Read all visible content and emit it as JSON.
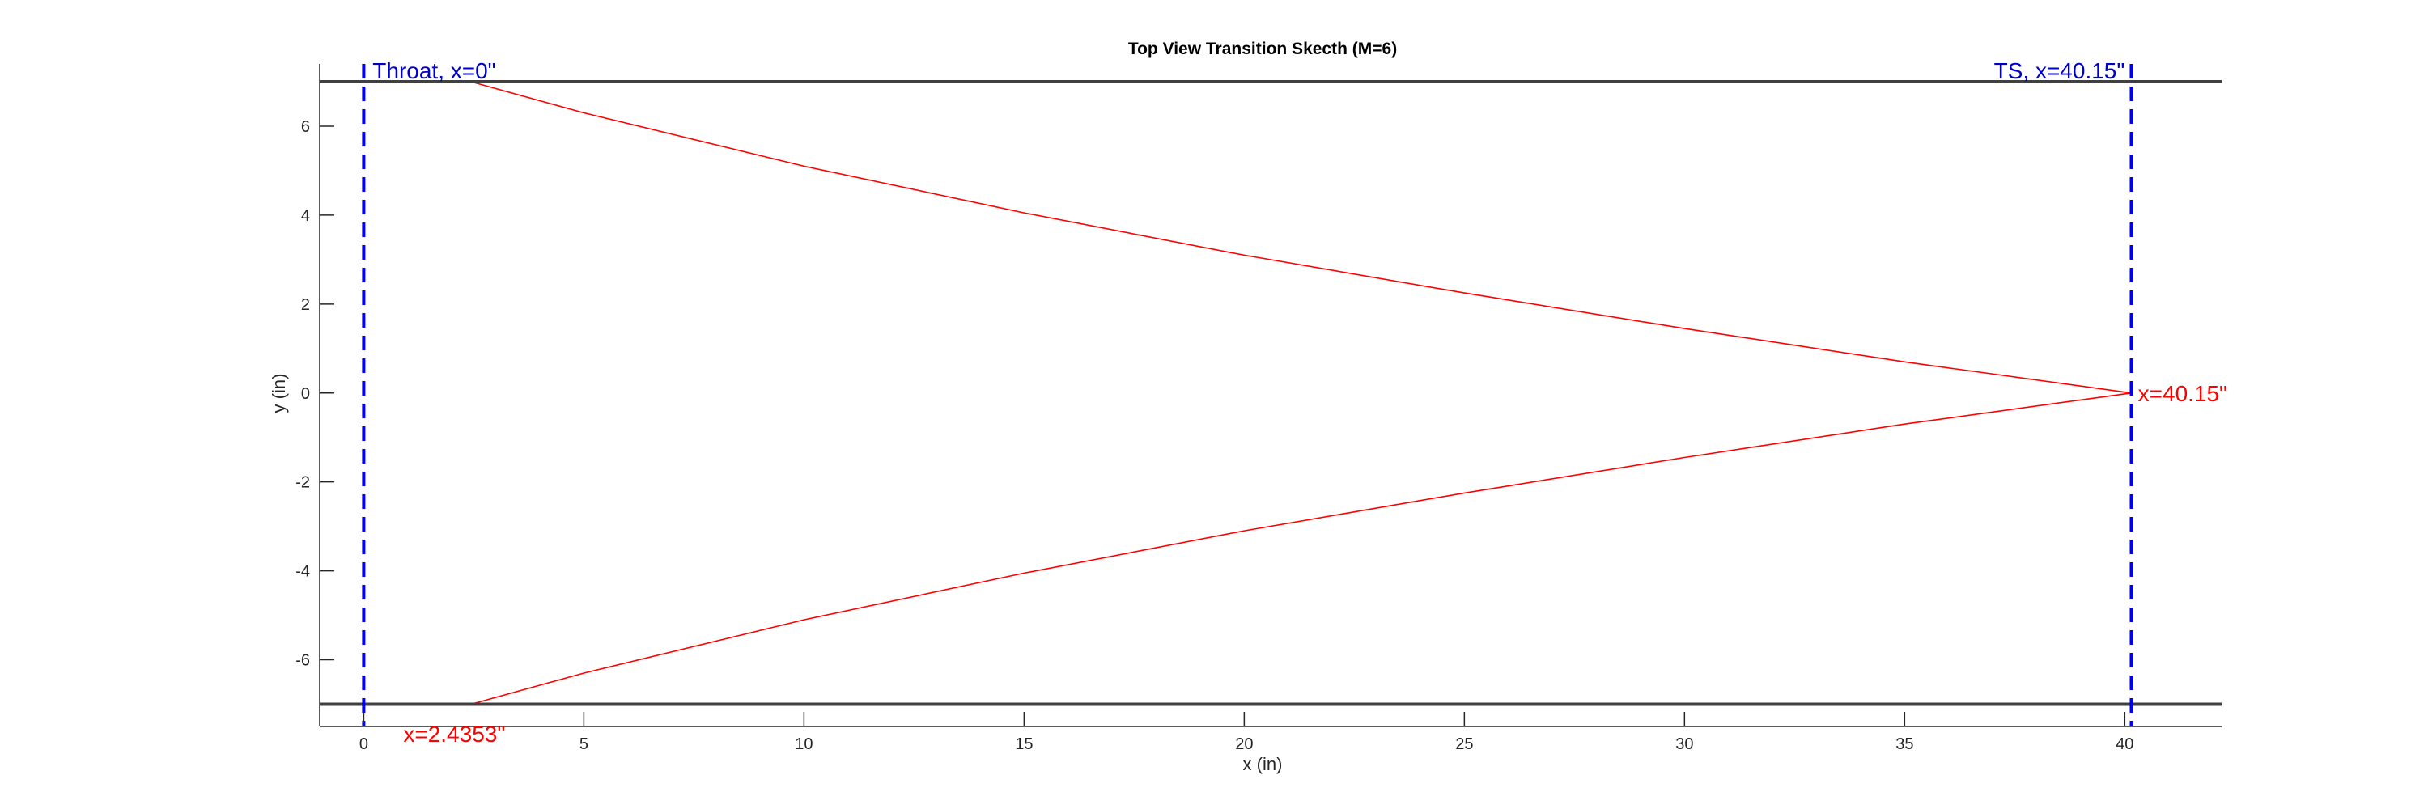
{
  "chart_data": {
    "type": "line",
    "title": "Top View Transition Skecth (M=6)",
    "xlabel": "x (in)",
    "ylabel": "y (in)",
    "xlim": [
      -1,
      42.2
    ],
    "ylim": [
      -7.5,
      7.4
    ],
    "xticks": [
      "0",
      "5",
      "10",
      "15",
      "20",
      "25",
      "30",
      "35",
      "40"
    ],
    "yticks": [
      "-6",
      "-4",
      "-2",
      "0",
      "2",
      "4",
      "6"
    ],
    "grid": false,
    "series": [
      {
        "color": "#ff0000",
        "style": "solid",
        "x": [
          2.4353,
          5,
          10,
          15,
          20,
          25,
          30,
          35,
          40.15
        ],
        "y": [
          7.0,
          6.3,
          5.1,
          4.05,
          3.1,
          2.25,
          1.45,
          0.7,
          0
        ]
      },
      {
        "color": "#ff0000",
        "style": "solid",
        "x": [
          2.4353,
          5,
          10,
          15,
          20,
          25,
          30,
          35,
          40.15
        ],
        "y": [
          -7.0,
          -6.3,
          -5.1,
          -4.05,
          -3.1,
          -2.25,
          -1.45,
          -0.7,
          0
        ]
      },
      {
        "color": "#404040",
        "style": "solid",
        "x": [
          -1,
          42.2
        ],
        "y": [
          7.0,
          7.0
        ]
      },
      {
        "color": "#404040",
        "style": "solid",
        "x": [
          -1,
          42.2
        ],
        "y": [
          -7.0,
          -7.0
        ]
      }
    ],
    "vlines": [
      {
        "x": 0,
        "color": "#0000ee",
        "style": "dashed"
      },
      {
        "x": 40.15,
        "color": "#0000ee",
        "style": "dashed"
      }
    ],
    "annotations": [
      {
        "text": "Throat, x=0\"",
        "x": 0.2,
        "y": 7.0,
        "color": "#0000cc",
        "anchor": "start"
      },
      {
        "text": "TS, x=40.15\"",
        "x": 40.0,
        "y": 7.0,
        "color": "#0000cc",
        "anchor": "end"
      },
      {
        "text": "x=40.15\"",
        "x": 40.3,
        "y": 0,
        "color": "#ff0000",
        "anchor": "start"
      },
      {
        "text": "x=2.4353\"",
        "x": 0.9,
        "y": -7.3,
        "color": "#ff0000",
        "anchor": "start"
      }
    ]
  }
}
